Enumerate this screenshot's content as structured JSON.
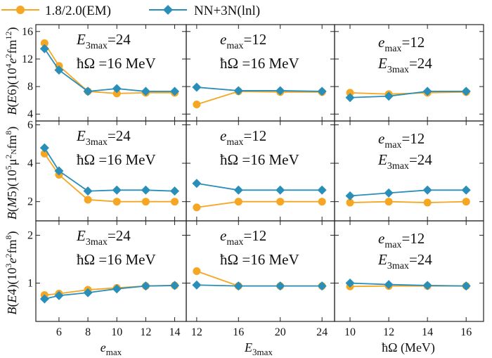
{
  "legend": [
    {
      "label": "1.8/2.0(EM)",
      "color": "#f5a623",
      "marker": "circle"
    },
    {
      "label": "NN+3N(lnl)",
      "color": "#2a8fb8",
      "marker": "diamond"
    }
  ],
  "rows": [
    {
      "ylabel": "B(E6)(10⁴e²fm¹²)",
      "ylim": [
        3,
        17
      ],
      "yticks": [
        4,
        8,
        12,
        16
      ]
    },
    {
      "ylabel": "B(M5)(10⁵μN²fm⁸)",
      "ylim": [
        1,
        6.2
      ],
      "yticks": [
        2,
        4,
        6
      ]
    },
    {
      "ylabel": "B(E4)(10³e²fm⁸)",
      "ylim": [
        0.2,
        2.3
      ],
      "yticks": [
        1,
        2
      ]
    }
  ],
  "columns": [
    {
      "xlabel": "e_max",
      "xlim": [
        4.4,
        14.8
      ],
      "xticks": [
        6,
        8,
        10,
        12,
        14
      ],
      "annotation": [
        "E3max=24",
        "ħΩ =16 MeV"
      ]
    },
    {
      "xlabel": "E_3max",
      "xlim": [
        11,
        25.2
      ],
      "xticks": [
        12,
        16,
        20,
        24
      ],
      "annotation": [
        "emax=12",
        "ħΩ =16 MeV"
      ]
    },
    {
      "xlabel": "ħΩ (MeV)",
      "xlim": [
        9.2,
        16.9
      ],
      "xticks": [
        10,
        12,
        14,
        16
      ],
      "annotation": [
        "emax=12",
        "E3max=24"
      ]
    }
  ],
  "chart_data": [
    {
      "type": "line",
      "panel": "row1-col1",
      "x": [
        5,
        6,
        8,
        10,
        12,
        14
      ],
      "series": [
        {
          "name": "1.8/2.0(EM)",
          "values": [
            14.3,
            11.0,
            7.3,
            7.0,
            7.1,
            7.1
          ]
        },
        {
          "name": "NN+3N(lnl)",
          "values": [
            13.5,
            10.4,
            7.3,
            7.7,
            7.3,
            7.3
          ]
        }
      ]
    },
    {
      "type": "line",
      "panel": "row1-col2",
      "x": [
        12,
        16,
        20,
        24
      ],
      "series": [
        {
          "name": "1.8/2.0(EM)",
          "values": [
            5.4,
            7.3,
            7.2,
            7.2
          ]
        },
        {
          "name": "NN+3N(lnl)",
          "values": [
            7.9,
            7.4,
            7.4,
            7.3
          ]
        }
      ]
    },
    {
      "type": "line",
      "panel": "row1-col3",
      "x": [
        10,
        12,
        14,
        16
      ],
      "series": [
        {
          "name": "1.8/2.0(EM)",
          "values": [
            7.1,
            6.9,
            7.1,
            7.2
          ]
        },
        {
          "name": "NN+3N(lnl)",
          "values": [
            6.4,
            6.6,
            7.3,
            7.3
          ]
        }
      ]
    },
    {
      "type": "line",
      "panel": "row2-col1",
      "x": [
        5,
        6,
        8,
        10,
        12,
        14
      ],
      "series": [
        {
          "name": "1.8/2.0(EM)",
          "values": [
            4.5,
            3.4,
            2.1,
            2.0,
            2.0,
            2.0
          ]
        },
        {
          "name": "NN+3N(lnl)",
          "values": [
            4.8,
            3.6,
            2.55,
            2.6,
            2.6,
            2.55
          ]
        }
      ]
    },
    {
      "type": "line",
      "panel": "row2-col2",
      "x": [
        12,
        16,
        20,
        24
      ],
      "series": [
        {
          "name": "1.8/2.0(EM)",
          "values": [
            1.7,
            2.0,
            2.0,
            2.0
          ]
        },
        {
          "name": "NN+3N(lnl)",
          "values": [
            2.95,
            2.6,
            2.6,
            2.6
          ]
        }
      ]
    },
    {
      "type": "line",
      "panel": "row2-col3",
      "x": [
        10,
        12,
        14,
        16
      ],
      "series": [
        {
          "name": "1.8/2.0(EM)",
          "values": [
            1.95,
            2.0,
            1.95,
            2.0
          ]
        },
        {
          "name": "NN+3N(lnl)",
          "values": [
            2.3,
            2.45,
            2.6,
            2.6
          ]
        }
      ]
    },
    {
      "type": "line",
      "panel": "row3-col1",
      "x": [
        5,
        6,
        8,
        10,
        12,
        14
      ],
      "series": [
        {
          "name": "1.8/2.0(EM)",
          "values": [
            0.75,
            0.78,
            0.86,
            0.9,
            0.94,
            0.95
          ]
        },
        {
          "name": "NN+3N(lnl)",
          "values": [
            0.67,
            0.74,
            0.8,
            0.88,
            0.94,
            0.95
          ]
        }
      ]
    },
    {
      "type": "line",
      "panel": "row3-col2",
      "x": [
        12,
        16,
        20,
        24
      ],
      "series": [
        {
          "name": "1.8/2.0(EM)",
          "values": [
            1.25,
            0.94,
            0.94,
            0.94
          ]
        },
        {
          "name": "NN+3N(lnl)",
          "values": [
            0.96,
            0.94,
            0.94,
            0.94
          ]
        }
      ]
    },
    {
      "type": "line",
      "panel": "row3-col3",
      "x": [
        10,
        12,
        14,
        16
      ],
      "series": [
        {
          "name": "1.8/2.0(EM)",
          "values": [
            0.93,
            0.94,
            0.94,
            0.94
          ]
        },
        {
          "name": "NN+3N(lnl)",
          "values": [
            1.0,
            0.97,
            0.95,
            0.94
          ]
        }
      ]
    }
  ]
}
